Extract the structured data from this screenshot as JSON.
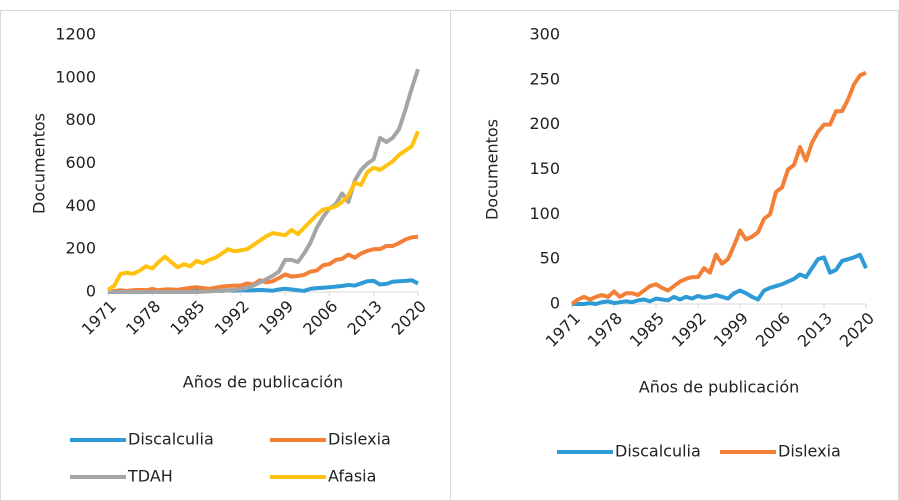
{
  "chart_data": [
    {
      "type": "line",
      "x_label": "Años de publicación",
      "y_label": "Documentos",
      "x": [
        1971,
        1972,
        1973,
        1974,
        1975,
        1976,
        1977,
        1978,
        1979,
        1980,
        1981,
        1982,
        1983,
        1984,
        1985,
        1986,
        1987,
        1988,
        1989,
        1990,
        1991,
        1992,
        1993,
        1994,
        1995,
        1996,
        1997,
        1998,
        1999,
        2000,
        2001,
        2002,
        2003,
        2004,
        2005,
        2006,
        2007,
        2008,
        2009,
        2010,
        2011,
        2012,
        2013,
        2014,
        2015,
        2016,
        2017,
        2018,
        2019,
        2020
      ],
      "xlim": [
        1971,
        2020
      ],
      "xticks": [
        1971,
        1978,
        1985,
        1992,
        1999,
        2006,
        2013,
        2020
      ],
      "ylim": [
        0,
        1200
      ],
      "yticks": [
        0,
        200,
        400,
        600,
        800,
        1000,
        1200
      ],
      "grid": false,
      "series": [
        {
          "name": "Discalculia",
          "color": "#2e9bd6",
          "values": [
            0,
            0,
            0,
            1,
            0,
            2,
            3,
            1,
            2,
            3,
            2,
            4,
            5,
            3,
            6,
            5,
            4,
            8,
            5,
            8,
            6,
            9,
            7,
            8,
            10,
            8,
            6,
            12,
            15,
            12,
            8,
            5,
            15,
            18,
            20,
            22,
            25,
            28,
            33,
            30,
            40,
            50,
            52,
            35,
            38,
            48,
            50,
            52,
            55,
            40
          ]
        },
        {
          "name": "Dislexia",
          "color": "#f47f36",
          "values": [
            0,
            5,
            8,
            5,
            8,
            10,
            8,
            14,
            8,
            12,
            12,
            10,
            15,
            20,
            22,
            18,
            15,
            20,
            25,
            28,
            30,
            30,
            40,
            35,
            55,
            45,
            50,
            65,
            82,
            72,
            75,
            80,
            95,
            100,
            125,
            130,
            150,
            155,
            175,
            160,
            180,
            192,
            200,
            200,
            215,
            215,
            228,
            245,
            255,
            258
          ]
        },
        {
          "name": "TDAH",
          "color": "#a5a5a5",
          "values": [
            0,
            0,
            0,
            0,
            0,
            0,
            0,
            0,
            0,
            0,
            0,
            0,
            0,
            0,
            0,
            2,
            3,
            5,
            5,
            8,
            10,
            15,
            20,
            30,
            45,
            60,
            75,
            95,
            150,
            150,
            140,
            180,
            230,
            300,
            350,
            390,
            410,
            460,
            420,
            520,
            570,
            600,
            620,
            720,
            700,
            720,
            760,
            850,
            950,
            1040
          ]
        },
        {
          "name": "Afasia",
          "color": "#fec20f",
          "values": [
            10,
            30,
            85,
            90,
            85,
            100,
            120,
            110,
            140,
            165,
            140,
            115,
            130,
            120,
            145,
            135,
            150,
            160,
            180,
            200,
            190,
            195,
            200,
            220,
            240,
            260,
            275,
            270,
            265,
            290,
            270,
            300,
            330,
            360,
            385,
            390,
            400,
            420,
            450,
            510,
            500,
            560,
            580,
            570,
            590,
            610,
            640,
            660,
            680,
            750
          ]
        }
      ]
    },
    {
      "type": "line",
      "x_label": "Años de publicación",
      "y_label": "Documentos",
      "x": [
        1971,
        1972,
        1973,
        1974,
        1975,
        1976,
        1977,
        1978,
        1979,
        1980,
        1981,
        1982,
        1983,
        1984,
        1985,
        1986,
        1987,
        1988,
        1989,
        1990,
        1991,
        1992,
        1993,
        1994,
        1995,
        1996,
        1997,
        1998,
        1999,
        2000,
        2001,
        2002,
        2003,
        2004,
        2005,
        2006,
        2007,
        2008,
        2009,
        2010,
        2011,
        2012,
        2013,
        2014,
        2015,
        2016,
        2017,
        2018,
        2019,
        2020
      ],
      "xlim": [
        1971,
        2020
      ],
      "xticks": [
        1971,
        1978,
        1985,
        1992,
        1999,
        2006,
        2013,
        2020
      ],
      "ylim": [
        0,
        300
      ],
      "yticks": [
        0,
        50,
        100,
        150,
        200,
        250,
        300
      ],
      "grid": false,
      "series": [
        {
          "name": "Discalculia",
          "color": "#2e9bd6",
          "values": [
            0,
            0,
            0,
            1,
            0,
            2,
            3,
            1,
            2,
            3,
            2,
            4,
            5,
            3,
            6,
            5,
            4,
            8,
            5,
            8,
            6,
            9,
            7,
            8,
            10,
            8,
            6,
            12,
            15,
            12,
            8,
            5,
            15,
            18,
            20,
            22,
            25,
            28,
            33,
            30,
            40,
            50,
            52,
            35,
            38,
            48,
            50,
            52,
            55,
            40
          ]
        },
        {
          "name": "Dislexia",
          "color": "#f47f36",
          "values": [
            0,
            5,
            8,
            5,
            8,
            10,
            8,
            14,
            8,
            12,
            12,
            10,
            15,
            20,
            22,
            18,
            15,
            20,
            25,
            28,
            30,
            30,
            40,
            35,
            55,
            45,
            50,
            65,
            82,
            72,
            75,
            80,
            95,
            100,
            125,
            130,
            150,
            155,
            175,
            160,
            180,
            192,
            200,
            200,
            215,
            215,
            228,
            245,
            255,
            258
          ]
        }
      ]
    }
  ]
}
